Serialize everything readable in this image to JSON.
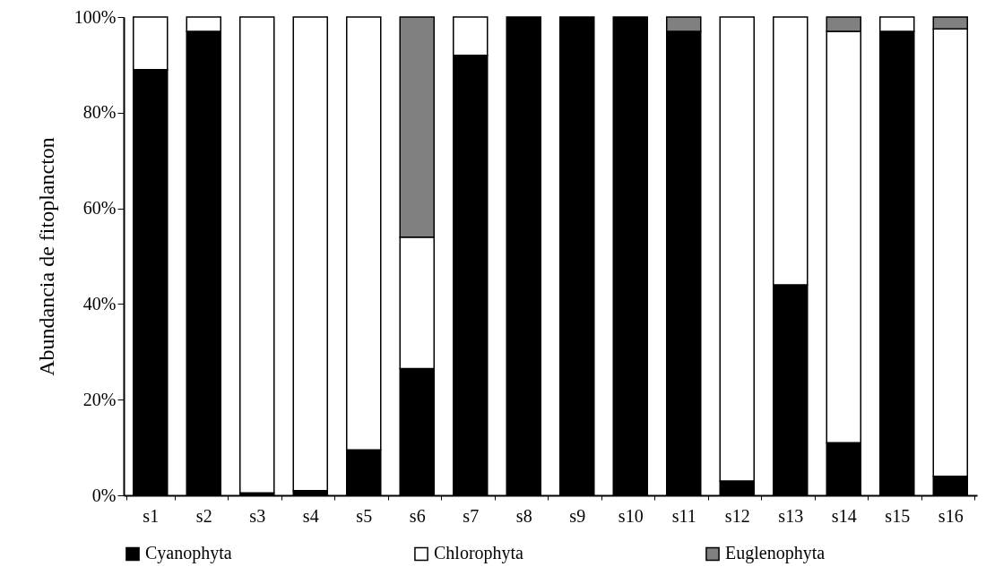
{
  "chart_data": {
    "type": "bar",
    "stacked": true,
    "ylabel": "Abundancia de fitoplancton",
    "categories": [
      "s1",
      "s2",
      "s3",
      "s4",
      "s5",
      "s6",
      "s7",
      "s8",
      "s9",
      "s10",
      "s11",
      "s12",
      "s13",
      "s14",
      "s15",
      "s16"
    ],
    "series": [
      {
        "name": "Cyanophyta",
        "color": "#000000",
        "values": [
          89,
          97,
          0.5,
          1,
          9.5,
          26.5,
          92,
          100,
          100,
          100,
          97,
          3,
          44,
          11,
          97,
          4
        ]
      },
      {
        "name": "Chlorophyta",
        "color": "#ffffff",
        "values": [
          11,
          3,
          99.5,
          99,
          90.5,
          27.5,
          8,
          0,
          0,
          0,
          0,
          97,
          56,
          86,
          3,
          93.5
        ]
      },
      {
        "name": "Euglenophyta",
        "color": "#808080",
        "values": [
          0,
          0,
          0,
          0,
          0,
          46,
          0,
          0,
          0,
          0,
          3,
          0,
          0,
          3,
          0,
          2.5
        ]
      }
    ],
    "ylim": [
      0,
      100
    ],
    "yticks": [
      {
        "value": 0,
        "label": "0%"
      },
      {
        "value": 20,
        "label": "20%"
      },
      {
        "value": 40,
        "label": "40%"
      },
      {
        "value": 60,
        "label": "60%"
      },
      {
        "value": 80,
        "label": "80%"
      },
      {
        "value": 100,
        "label": "100%"
      }
    ],
    "grid": false,
    "legend": "bottom"
  }
}
